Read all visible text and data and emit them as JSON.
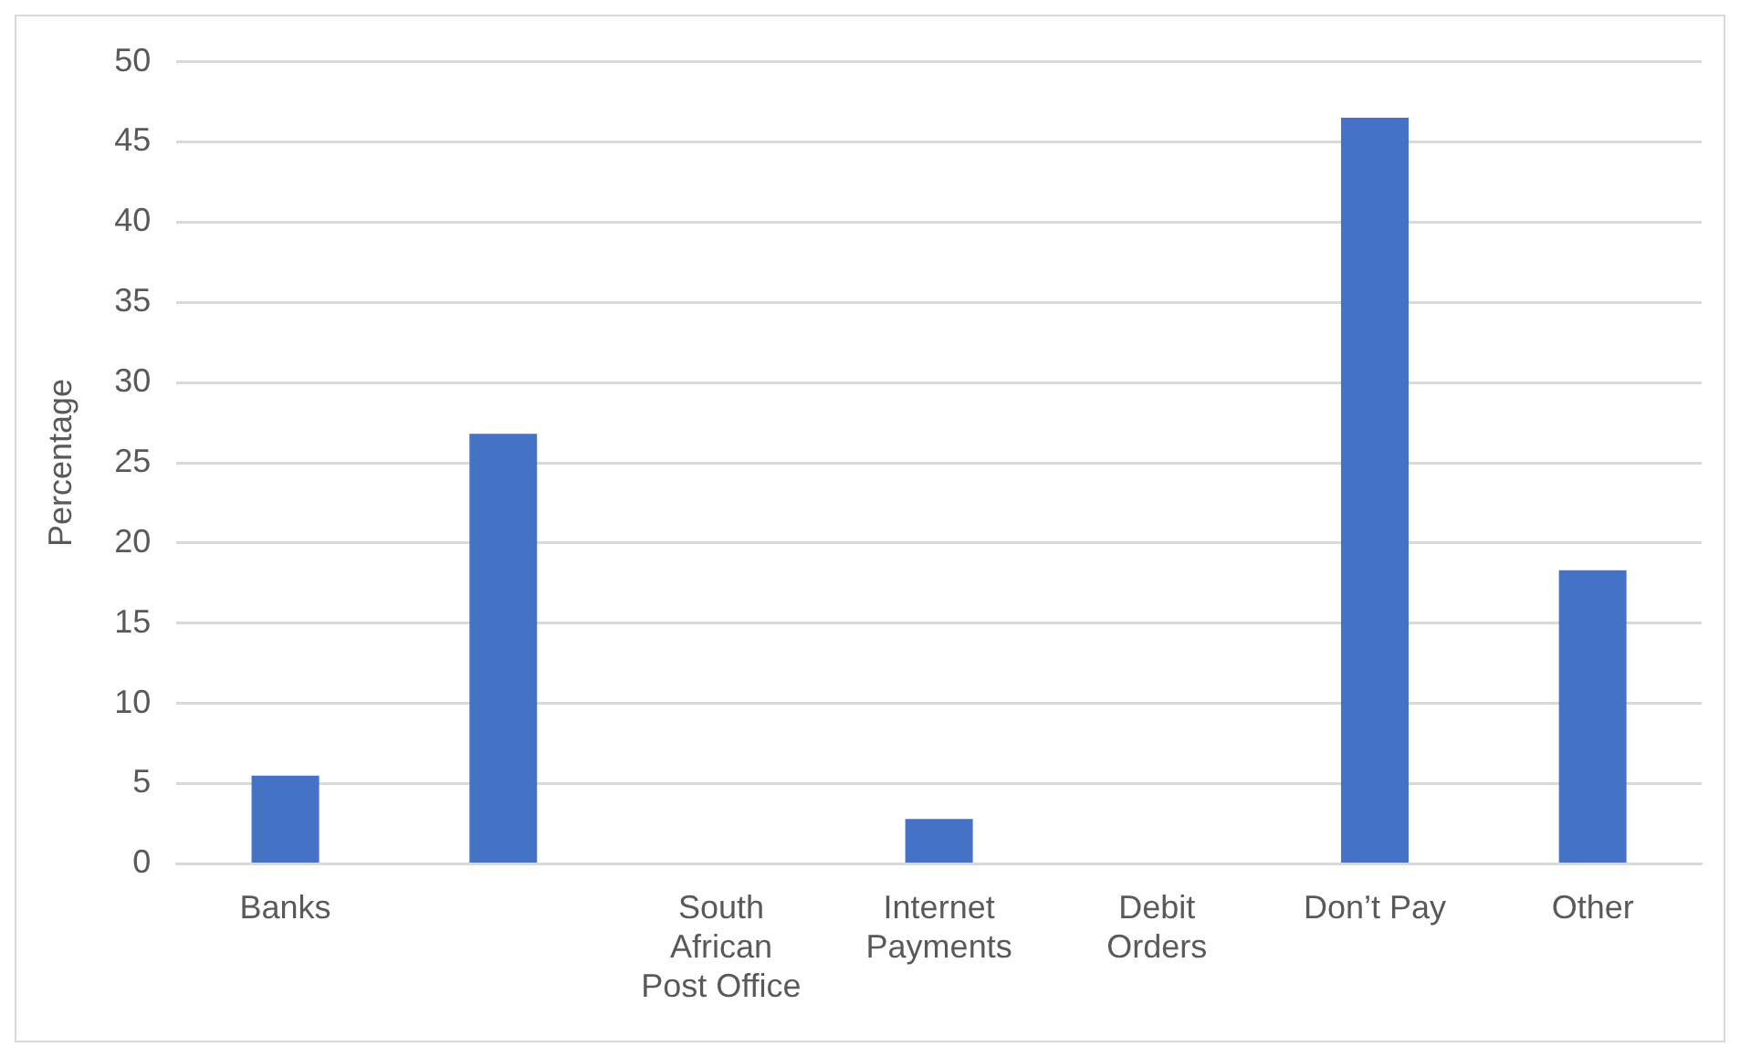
{
  "chart_data": {
    "type": "bar",
    "ylabel": "Percentage",
    "categories": [
      "Banks",
      null,
      "South African Post Office",
      "Internet Payments",
      "Debit Orders",
      "Don’t Pay",
      "Other"
    ],
    "values": [
      5.5,
      26.8,
      0,
      2.8,
      0,
      46.5,
      18.3
    ],
    "color": "#4472c4",
    "ylim": [
      0,
      50
    ],
    "yticks": [
      0,
      5,
      10,
      15,
      20,
      25,
      30,
      35,
      40,
      45,
      50
    ],
    "grid": "y",
    "legend": false
  }
}
